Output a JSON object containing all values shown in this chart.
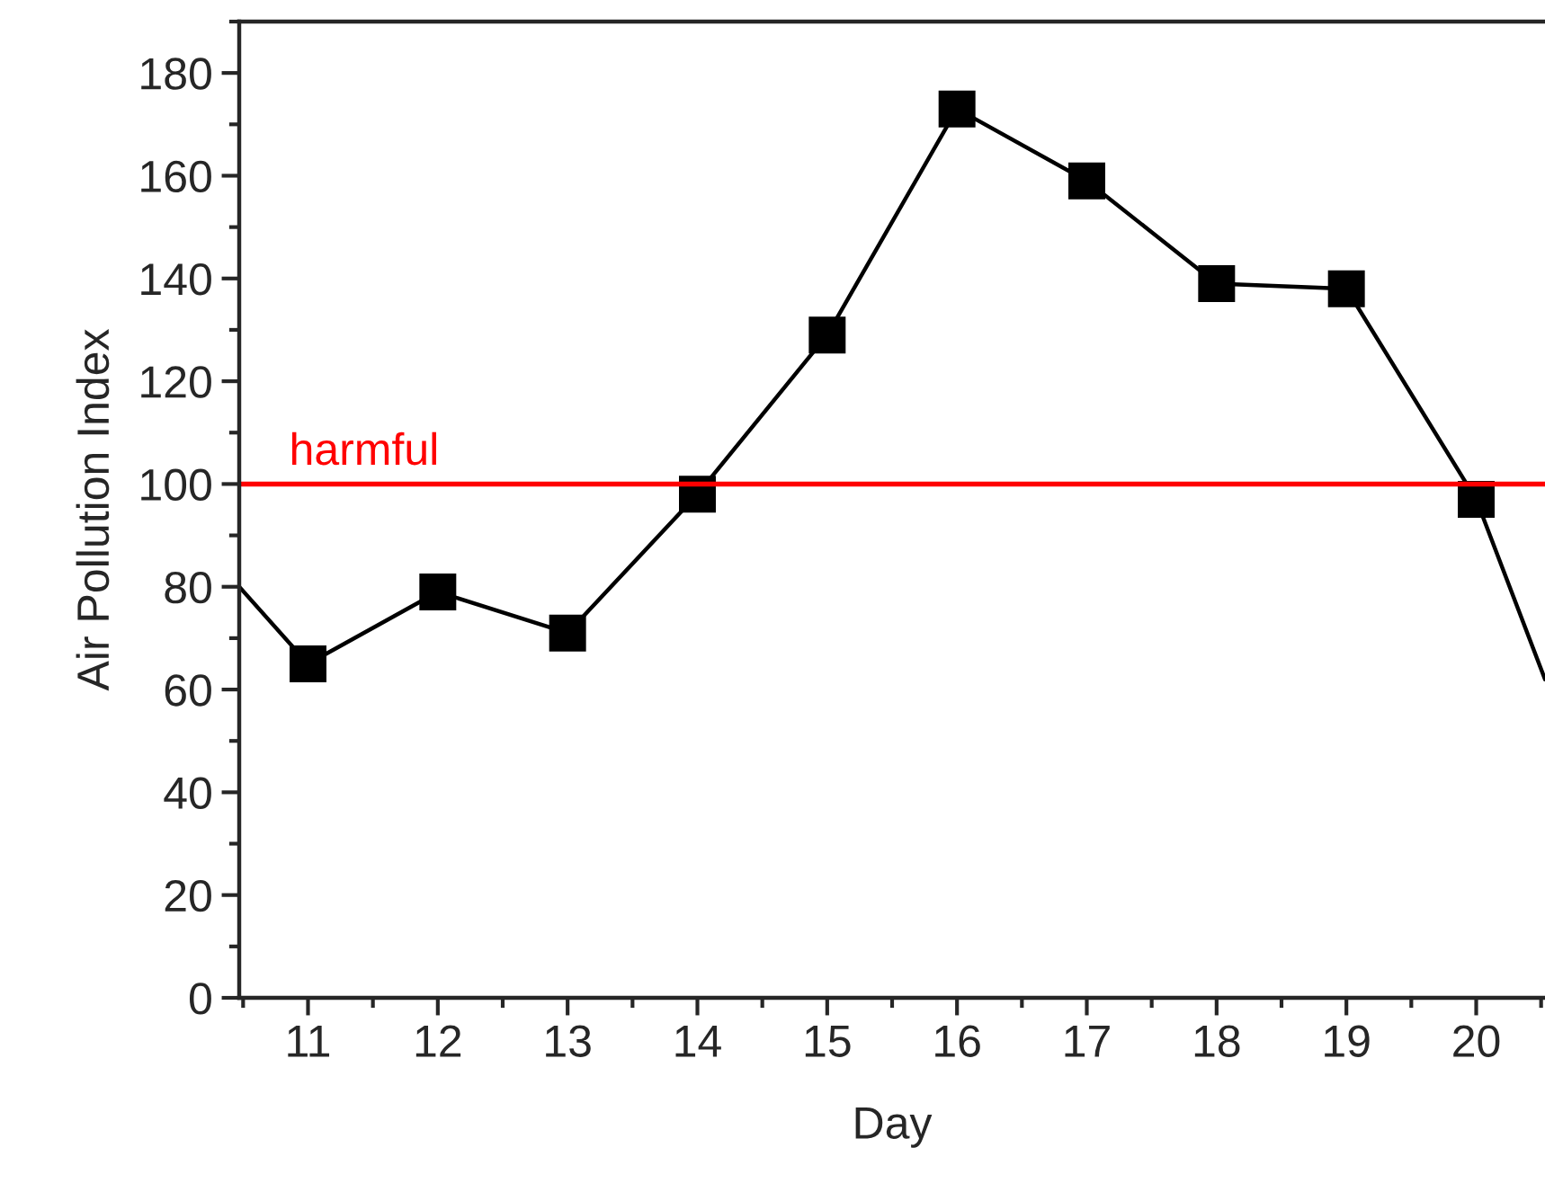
{
  "chart_data": {
    "type": "line",
    "xlabel": "Day",
    "ylabel": "Air Pollution Index",
    "x": [
      10.47,
      11,
      12,
      13,
      14,
      15,
      16,
      17,
      18,
      19,
      20,
      20.53
    ],
    "series": [
      {
        "color": "#000000",
        "values": [
          80,
          65,
          79,
          71,
          98,
          129,
          173,
          159,
          139,
          138,
          97,
          62
        ]
      }
    ],
    "marker": "square",
    "line_style": "solid",
    "xlim": [
      10.47,
      20.53
    ],
    "xticks": [
      11,
      12,
      13,
      14,
      15,
      16,
      17,
      18,
      19,
      20
    ],
    "ylim": [
      0,
      190
    ],
    "yticks": [
      0,
      20,
      40,
      60,
      80,
      100,
      120,
      140,
      160,
      180
    ],
    "ref_lines": [
      {
        "axis": "y",
        "value": 100,
        "label": "harmful",
        "color": "#ff0000",
        "line_style": "solid"
      }
    ],
    "grid": false,
    "legend": false
  }
}
